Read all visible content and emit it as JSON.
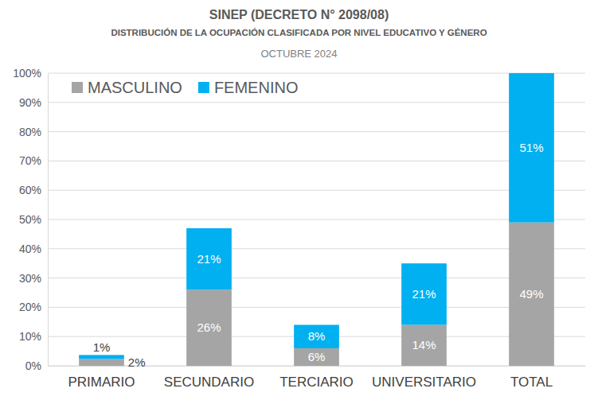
{
  "chart_data": {
    "type": "bar",
    "title": "SINEP (DECRETO N° 2098/08)",
    "subtitle": "DISTRIBUCIÓN DE LA OCUPACIÓN CLASIFICADA POR NIVEL EDUCATIVO Y GÉNERO",
    "annotations": [
      "OCTUBRE 2024"
    ],
    "categories": [
      "PRIMARIO",
      "SECUNDARIO",
      "TERCIARIO",
      "UNIVERSITARIO",
      "TOTAL"
    ],
    "series": [
      {
        "name": "MASCULINO",
        "color": "#a5a5a5",
        "values": [
          2.3,
          26,
          6,
          14,
          49
        ],
        "value_labels": [
          "2%",
          "26%",
          "6%",
          "14%",
          "49%"
        ]
      },
      {
        "name": "FEMENINO",
        "color": "#00b0f0",
        "values": [
          1.4,
          21,
          8,
          21,
          51
        ],
        "value_labels": [
          "1%",
          "21%",
          "8%",
          "21%",
          "51%"
        ]
      }
    ],
    "ylim": [
      0,
      100
    ],
    "yticks": [
      {
        "value": 0,
        "label": "0%"
      },
      {
        "value": 10,
        "label": "10%"
      },
      {
        "value": 20,
        "label": "20%"
      },
      {
        "value": 30,
        "label": "30%"
      },
      {
        "value": 40,
        "label": "40%"
      },
      {
        "value": 50,
        "label": "50%"
      },
      {
        "value": 60,
        "label": "60%"
      },
      {
        "value": 70,
        "label": "70%"
      },
      {
        "value": 80,
        "label": "80%"
      },
      {
        "value": 90,
        "label": "90%"
      },
      {
        "value": 100,
        "label": "100%"
      }
    ],
    "stacked": true,
    "data_labels": true,
    "grid": true,
    "legend": "top-left"
  }
}
